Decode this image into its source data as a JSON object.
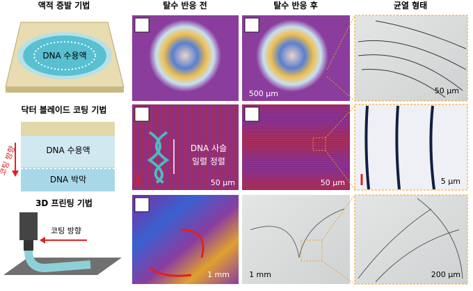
{
  "methods": [
    "액적 증발 기법",
    "닥터 블레이드 코팅 기법",
    "3D 프린팅 기법"
  ],
  "columns": [
    "탈수 반응 전",
    "탈수 반응 후",
    "균열 형태"
  ],
  "schematics": {
    "droplet_label": "DNA 수용액",
    "blade_solution": "DNA 수용액",
    "blade_film": "DNA 박막",
    "blade_direction": "코팅 방향",
    "print_direction": "코팅 방향"
  },
  "annotation": [
    "DNA 사슬",
    "일렬 정렬"
  ],
  "scale_bars": [
    [
      "500 μm",
      "50 μm"
    ],
    [
      "50 μm",
      "50 μm",
      "5 μm"
    ],
    [
      "1 mm",
      "1 mm",
      "200 μm"
    ]
  ]
}
